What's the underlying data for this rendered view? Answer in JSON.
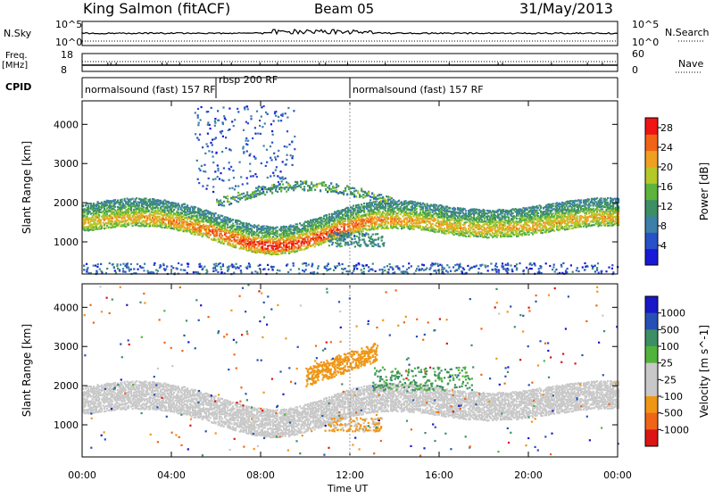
{
  "header": {
    "station": "King Salmon (fitACF)",
    "beam": "Beam 05",
    "date": "31/May/2013"
  },
  "params": {
    "nsky_label": "N.Sky",
    "nsky_top": "10^5",
    "nsky_bottom": "10^0",
    "freq_label_1": "Freq.",
    "freq_label_2": "[MHz]",
    "freq_top": "18",
    "freq_bottom": "8",
    "nsearch_label": "N.Search",
    "nsearch_top": "10^5",
    "nsearch_bottom": "10^0",
    "nave_label": "Nave",
    "nave_top": "60",
    "nave_bottom": "0",
    "cpid_label": "CPID",
    "cpid_segments": [
      {
        "label": "normalsound (fast) 157 RF",
        "start": "00:00",
        "end": "06:00"
      },
      {
        "label": "rbsp 200 RF",
        "start": "06:00",
        "end": "12:00"
      },
      {
        "label": "normalsound (fast) 157 RF",
        "start": "12:00",
        "end": "24:00"
      }
    ]
  },
  "colors": {
    "power": [
      "#1818d8",
      "#2850c8",
      "#3c7fa8",
      "#3c8f64",
      "#5cb43c",
      "#b4c828",
      "#f0a020",
      "#f06418",
      "#f01414"
    ],
    "velocity": [
      "#dc1414",
      "#f06418",
      "#f09614",
      "#c8c8c8",
      "#c8c8c8",
      "#50b43c",
      "#3c8f64",
      "#2850b4",
      "#1818c8"
    ]
  },
  "chart_data": [
    {
      "type": "heatmap",
      "title": "Power",
      "ylabel": "Slant Range [km]",
      "xlabel": "Time UT",
      "x_ticks": [
        "00:00",
        "04:00",
        "08:00",
        "12:00",
        "16:00",
        "20:00",
        "00:00"
      ],
      "y_ticks": [
        1000,
        2000,
        3000,
        4000
      ],
      "xlim_hours": [
        0,
        24
      ],
      "ylim_km": [
        180,
        4600
      ],
      "colorbar_label": "Power [dB]",
      "colorbar_ticks": [
        4,
        8,
        12,
        16,
        20,
        24,
        28
      ],
      "colorbar_range": [
        0,
        30
      ],
      "features": [
        {
          "name": "main band",
          "start": "00:00",
          "end": "24:00",
          "range_km_approx": [
            1300,
            2100
          ],
          "peak_db": 28,
          "peak_time": "09:00",
          "peak_range_km": 1150
        },
        {
          "name": "upper arc",
          "start": "06:00",
          "end": "14:00",
          "range_km_approx": [
            2000,
            2600
          ],
          "peak_db": 16
        },
        {
          "name": "high streaks",
          "start": "05:00",
          "end": "09:00",
          "range_km_approx": [
            2400,
            4500
          ],
          "peak_db": 8
        },
        {
          "name": "near range",
          "start": "00:00",
          "end": "24:00",
          "range_km_approx": [
            180,
            450
          ],
          "peak_db": 8
        }
      ]
    },
    {
      "type": "heatmap",
      "title": "Velocity",
      "ylabel": "Slant Range [km]",
      "xlabel": "Time UT",
      "x_ticks": [
        "00:00",
        "04:00",
        "08:00",
        "12:00",
        "16:00",
        "20:00",
        "00:00"
      ],
      "y_ticks": [
        1000,
        2000,
        3000,
        4000
      ],
      "xlim_hours": [
        0,
        24
      ],
      "ylim_km": [
        180,
        4600
      ],
      "colorbar_label": "Velocity [m s^-1]",
      "colorbar_ticks": [
        1000,
        500,
        100,
        25,
        -25,
        -100,
        -500,
        -1000
      ],
      "features": [
        {
          "name": "ground scatter band",
          "start": "00:00",
          "end": "24:00",
          "range_km_approx": [
            1300,
            1800
          ],
          "velocity": "-25 to 25"
        },
        {
          "name": "negative arc",
          "start": "10:00",
          "end": "13:00",
          "range_km_approx": [
            2000,
            2800
          ],
          "velocity": -300
        },
        {
          "name": "low echoes",
          "start": "11:00",
          "end": "13:30",
          "range_km_approx": [
            900,
            1200
          ],
          "velocity": -150
        },
        {
          "name": "positive patch",
          "start": "13:00",
          "end": "17:30",
          "range_km_approx": [
            1900,
            2500
          ],
          "velocity": 200
        }
      ]
    }
  ]
}
